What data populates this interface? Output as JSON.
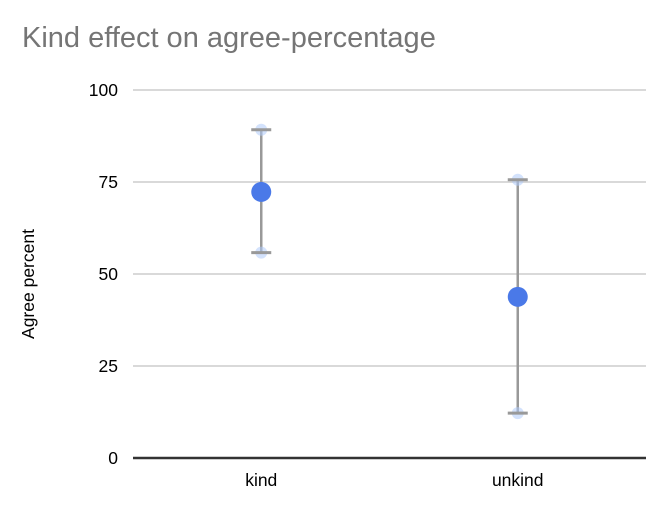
{
  "chart_data": {
    "type": "scatter",
    "title": "Kind effect on agree-percentage",
    "xlabel": "",
    "ylabel": "Agree percent",
    "categories": [
      "kind",
      "unkind"
    ],
    "series": [
      {
        "name": "Agree percent",
        "values": [
          72.3,
          43.8
        ],
        "error_low": [
          55.8,
          12.2
        ],
        "error_high": [
          89.2,
          75.6
        ]
      }
    ],
    "ylim": [
      0,
      100
    ],
    "yticks": [
      0,
      25,
      50,
      75,
      100
    ],
    "grid": true,
    "legend": "none"
  },
  "colors": {
    "background": "#ffffff",
    "title": "#757575",
    "tick_label": "#000000",
    "axis_title": "#000000",
    "gridline": "#d9d9d9",
    "baseline": "#333333",
    "point": "#4a79e8",
    "error_bar": "#999999",
    "error_cap_dot": "#aecbfa"
  }
}
